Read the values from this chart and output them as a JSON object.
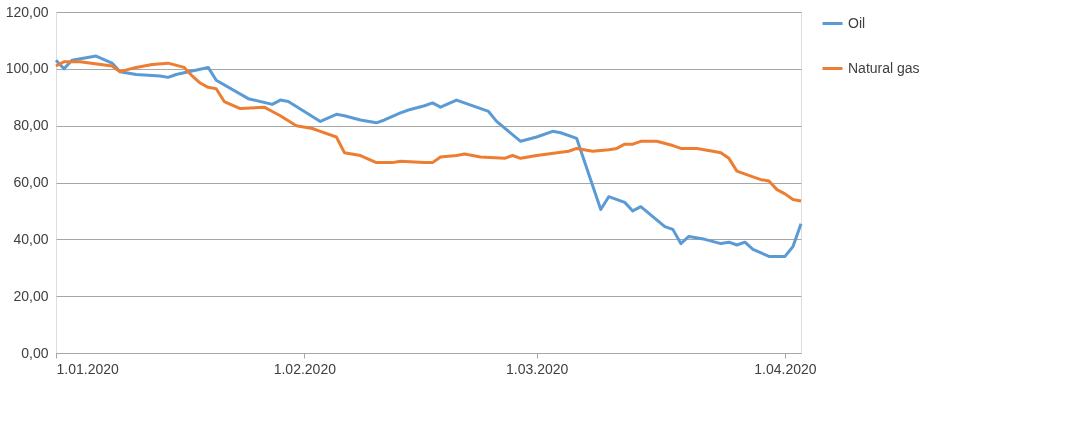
{
  "chart_data": {
    "type": "line",
    "grid": "y",
    "legend": "right",
    "line_style": "solid",
    "marker": "none",
    "xlim": [
      "2020-01-01",
      "2020-04-03"
    ],
    "xticks": [
      {
        "value": "2020-01-01",
        "label": "1.01.2020"
      },
      {
        "value": "2020-02-01",
        "label": "1.02.2020"
      },
      {
        "value": "2020-03-01",
        "label": "1.03.2020"
      },
      {
        "value": "2020-04-01",
        "label": "1.04.2020"
      }
    ],
    "ylim": [
      0,
      120
    ],
    "yticks": [
      {
        "value": 0,
        "label": "0,00"
      },
      {
        "value": 20,
        "label": "20,00"
      },
      {
        "value": 40,
        "label": "40,00"
      },
      {
        "value": 60,
        "label": "60,00"
      },
      {
        "value": 80,
        "label": "80,00"
      },
      {
        "value": 100,
        "label": "100,00"
      },
      {
        "value": 120,
        "label": "120,00"
      }
    ],
    "series": [
      {
        "name": "Oil",
        "color": "#5b9bd5",
        "x": [
          "2020-01-01",
          "2020-01-02",
          "2020-01-03",
          "2020-01-06",
          "2020-01-08",
          "2020-01-09",
          "2020-01-11",
          "2020-01-14",
          "2020-01-15",
          "2020-01-16",
          "2020-01-20",
          "2020-01-21",
          "2020-01-25",
          "2020-01-28",
          "2020-01-29",
          "2020-01-30",
          "2020-02-01",
          "2020-02-03",
          "2020-02-05",
          "2020-02-06",
          "2020-02-08",
          "2020-02-10",
          "2020-02-11",
          "2020-02-13",
          "2020-02-14",
          "2020-02-16",
          "2020-02-17",
          "2020-02-18",
          "2020-02-20",
          "2020-02-24",
          "2020-02-25",
          "2020-02-28",
          "2020-03-01",
          "2020-03-03",
          "2020-03-04",
          "2020-03-06",
          "2020-03-09",
          "2020-03-10",
          "2020-03-12",
          "2020-03-13",
          "2020-03-14",
          "2020-03-17",
          "2020-03-18",
          "2020-03-19",
          "2020-03-20",
          "2020-03-22",
          "2020-03-24",
          "2020-03-25",
          "2020-03-26",
          "2020-03-27",
          "2020-03-28",
          "2020-03-30",
          "2020-03-31",
          "2020-04-01",
          "2020-04-02",
          "2020-04-03"
        ],
        "values": [
          103,
          100,
          103,
          104.5,
          102,
          99,
          98,
          97.5,
          97,
          98,
          100.5,
          96,
          89.5,
          87.5,
          89,
          88.5,
          85,
          81.5,
          84,
          83.5,
          82,
          81,
          82,
          84.5,
          85.5,
          87,
          88,
          86.5,
          89,
          85,
          81.5,
          74.5,
          76,
          78,
          77.5,
          75.5,
          50.5,
          55,
          53,
          50,
          51.5,
          44.5,
          43.5,
          38.5,
          41,
          40,
          38.5,
          39,
          38,
          39,
          36.5,
          34,
          34,
          34,
          37.5,
          45.5
        ]
      },
      {
        "name": "Natural gas",
        "color": "#ed7d31",
        "x": [
          "2020-01-01",
          "2020-01-02",
          "2020-01-04",
          "2020-01-08",
          "2020-01-09",
          "2020-01-11",
          "2020-01-13",
          "2020-01-15",
          "2020-01-17",
          "2020-01-18",
          "2020-01-19",
          "2020-01-20",
          "2020-01-21",
          "2020-01-22",
          "2020-01-24",
          "2020-01-27",
          "2020-01-28",
          "2020-01-29",
          "2020-01-31",
          "2020-02-02",
          "2020-02-03",
          "2020-02-05",
          "2020-02-06",
          "2020-02-08",
          "2020-02-10",
          "2020-02-12",
          "2020-02-13",
          "2020-02-16",
          "2020-02-17",
          "2020-02-18",
          "2020-02-20",
          "2020-02-21",
          "2020-02-23",
          "2020-02-26",
          "2020-02-27",
          "2020-02-28",
          "2020-03-01",
          "2020-03-05",
          "2020-03-06",
          "2020-03-08",
          "2020-03-10",
          "2020-03-11",
          "2020-03-12",
          "2020-03-13",
          "2020-03-14",
          "2020-03-16",
          "2020-03-18",
          "2020-03-19",
          "2020-03-21",
          "2020-03-23",
          "2020-03-24",
          "2020-03-25",
          "2020-03-26",
          "2020-03-28",
          "2020-03-29",
          "2020-03-30",
          "2020-03-31",
          "2020-04-01",
          "2020-04-02",
          "2020-04-03"
        ],
        "values": [
          101,
          102.5,
          102.5,
          101,
          99,
          100.5,
          101.5,
          102,
          100.5,
          97.5,
          95,
          93.5,
          93,
          88.5,
          86,
          86.5,
          85,
          83.5,
          80,
          79,
          78,
          76,
          70.5,
          69.5,
          67,
          67,
          67.5,
          67,
          67,
          69,
          69.5,
          70,
          69,
          68.5,
          69.5,
          68.5,
          69.5,
          71,
          72,
          71,
          71.5,
          72,
          73.5,
          73.5,
          74.5,
          74.5,
          73,
          72,
          72,
          71,
          70.5,
          68.5,
          64,
          62,
          61,
          60.5,
          57.5,
          56,
          54,
          53.5
        ]
      }
    ]
  }
}
